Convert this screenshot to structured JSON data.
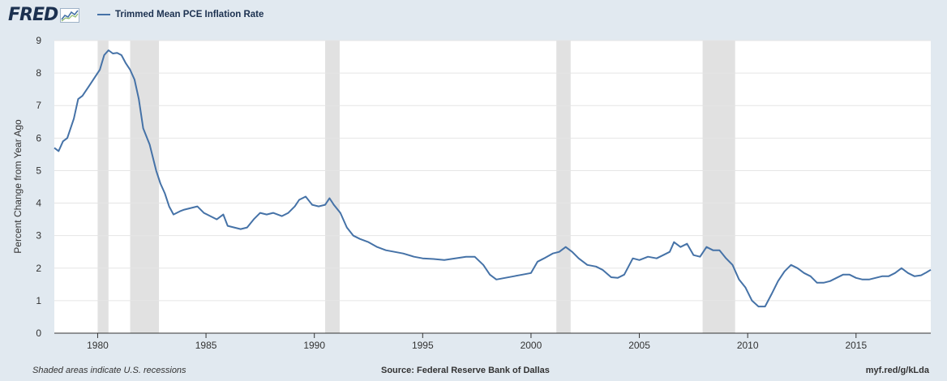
{
  "header": {
    "logo_text": "FRED",
    "logo_icon": "line-graph-icon"
  },
  "footer": {
    "recession_note": "Shaded areas indicate U.S. recessions",
    "source": "Source: Federal Reserve Bank of Dallas",
    "url": "myf.red/g/kLda"
  },
  "colors": {
    "series": "#4572a7",
    "recession": "#e1e1e1",
    "background": "#e1e9f0",
    "plot_background": "#ffffff",
    "gridline": "#e5e5e5"
  },
  "chart_data": {
    "type": "line",
    "title": "",
    "xlabel": "",
    "ylabel": "Percent Change from Year Ago",
    "xlim": [
      1978.0,
      2018.45
    ],
    "ylim": [
      0,
      9
    ],
    "yticks": [
      0,
      1,
      2,
      3,
      4,
      5,
      6,
      7,
      8,
      9
    ],
    "xticks": [
      1980,
      1985,
      1990,
      1995,
      2000,
      2005,
      2010,
      2015
    ],
    "grid": true,
    "legend_position": "top-left",
    "recessions": [
      [
        1980.0,
        1980.5
      ],
      [
        1981.5,
        1982.83
      ],
      [
        1990.5,
        1991.17
      ],
      [
        2001.17,
        2001.83
      ],
      [
        2007.92,
        2009.42
      ]
    ],
    "series": [
      {
        "name": "Trimmed Mean PCE Inflation Rate",
        "x": [
          1978.0,
          1978.2,
          1978.4,
          1978.6,
          1978.9,
          1979.1,
          1979.3,
          1979.6,
          1979.9,
          1980.1,
          1980.3,
          1980.5,
          1980.7,
          1980.9,
          1981.1,
          1981.3,
          1981.5,
          1981.7,
          1981.9,
          1982.1,
          1982.4,
          1982.7,
          1982.9,
          1983.1,
          1983.3,
          1983.5,
          1983.8,
          1984.0,
          1984.3,
          1984.6,
          1984.9,
          1985.2,
          1985.5,
          1985.8,
          1986.0,
          1986.3,
          1986.6,
          1986.9,
          1987.2,
          1987.5,
          1987.8,
          1988.1,
          1988.5,
          1988.8,
          1989.1,
          1989.3,
          1989.6,
          1989.9,
          1990.2,
          1990.5,
          1990.7,
          1990.9,
          1991.2,
          1991.5,
          1991.8,
          1992.1,
          1992.5,
          1992.9,
          1993.3,
          1993.7,
          1994.1,
          1994.6,
          1995.0,
          1995.5,
          1996.0,
          1996.5,
          1997.0,
          1997.4,
          1997.8,
          1998.1,
          1998.4,
          1998.8,
          1999.2,
          1999.6,
          2000.0,
          2000.3,
          2000.6,
          2001.0,
          2001.3,
          2001.6,
          2001.9,
          2002.2,
          2002.6,
          2003.0,
          2003.3,
          2003.7,
          2004.0,
          2004.3,
          2004.7,
          2005.0,
          2005.4,
          2005.8,
          2006.1,
          2006.4,
          2006.6,
          2006.9,
          2007.2,
          2007.5,
          2007.8,
          2008.1,
          2008.4,
          2008.7,
          2009.0,
          2009.3,
          2009.6,
          2009.9,
          2010.2,
          2010.5,
          2010.8,
          2011.1,
          2011.4,
          2011.7,
          2012.0,
          2012.3,
          2012.6,
          2012.9,
          2013.2,
          2013.5,
          2013.8,
          2014.1,
          2014.4,
          2014.7,
          2015.0,
          2015.3,
          2015.6,
          2015.9,
          2016.2,
          2016.5,
          2016.8,
          2017.1,
          2017.4,
          2017.7,
          2018.0,
          2018.2,
          2018.45
        ],
        "y": [
          5.7,
          5.6,
          5.9,
          6.0,
          6.6,
          7.2,
          7.3,
          7.6,
          7.9,
          8.1,
          8.55,
          8.7,
          8.6,
          8.62,
          8.55,
          8.3,
          8.1,
          7.8,
          7.2,
          6.3,
          5.8,
          5.0,
          4.6,
          4.3,
          3.9,
          3.65,
          3.75,
          3.8,
          3.85,
          3.9,
          3.7,
          3.6,
          3.5,
          3.65,
          3.3,
          3.25,
          3.2,
          3.25,
          3.5,
          3.7,
          3.65,
          3.7,
          3.6,
          3.7,
          3.9,
          4.1,
          4.2,
          3.95,
          3.9,
          3.95,
          4.15,
          3.95,
          3.7,
          3.25,
          3.0,
          2.9,
          2.8,
          2.65,
          2.55,
          2.5,
          2.45,
          2.35,
          2.3,
          2.28,
          2.25,
          2.3,
          2.35,
          2.35,
          2.1,
          1.8,
          1.65,
          1.7,
          1.75,
          1.8,
          1.85,
          2.2,
          2.3,
          2.45,
          2.5,
          2.65,
          2.5,
          2.3,
          2.1,
          2.05,
          1.95,
          1.72,
          1.7,
          1.8,
          2.3,
          2.25,
          2.35,
          2.3,
          2.4,
          2.5,
          2.8,
          2.65,
          2.75,
          2.4,
          2.35,
          2.65,
          2.55,
          2.55,
          2.3,
          2.1,
          1.65,
          1.4,
          1.0,
          0.82,
          0.82,
          1.2,
          1.6,
          1.9,
          2.1,
          2.0,
          1.85,
          1.75,
          1.55,
          1.55,
          1.6,
          1.7,
          1.8,
          1.8,
          1.7,
          1.65,
          1.65,
          1.7,
          1.75,
          1.75,
          1.85,
          2.0,
          1.85,
          1.75,
          1.78,
          1.85,
          1.95
        ]
      }
    ]
  }
}
